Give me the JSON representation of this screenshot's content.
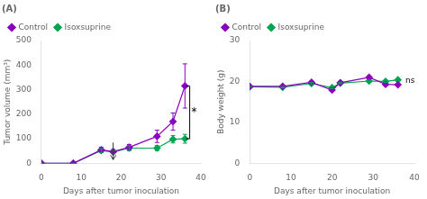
{
  "chart_data": [
    {
      "type": "line",
      "title": "(A)",
      "xlabel": "Days after tumor inoculation",
      "ylabel": "Tumor volume (mm³)",
      "x": [
        0,
        8,
        15,
        18,
        22,
        29,
        33,
        36
      ],
      "xlim": [
        0,
        40
      ],
      "xticks": [
        0,
        10,
        20,
        30,
        40
      ],
      "ylim": [
        0,
        500
      ],
      "yticks": [
        0,
        100,
        200,
        300,
        400,
        500
      ],
      "grid": false,
      "legend": "upper left",
      "marker": "diamond",
      "series": [
        {
          "name": "Control",
          "color": "#8B00BE",
          "values": [
            0,
            0,
            55,
            48,
            65,
            110,
            170,
            315
          ],
          "errors": [
            0,
            0,
            10,
            8,
            12,
            25,
            35,
            90
          ]
        },
        {
          "name": "Isoxsuprine",
          "color": "#00A550",
          "values": [
            0,
            0,
            52,
            46,
            62,
            62,
            98,
            100
          ],
          "errors": [
            0,
            0,
            8,
            7,
            10,
            10,
            15,
            18
          ]
        }
      ],
      "annotations": [
        {
          "type": "arrow",
          "x": 18,
          "y_start": 85,
          "y_end": 15,
          "color": "#333333"
        },
        {
          "type": "bracket",
          "x": 37.2,
          "y_start": 315,
          "y_end": 100,
          "text": "*",
          "color": "#000000"
        }
      ]
    },
    {
      "type": "line",
      "title": "(B)",
      "xlabel": "Days after tumor inoculation",
      "ylabel": "Body weight (g)",
      "x": [
        0,
        8,
        15,
        20,
        22,
        29,
        33,
        36
      ],
      "xlim": [
        0,
        40
      ],
      "xticks": [
        0,
        10,
        20,
        30,
        40
      ],
      "ylim": [
        0,
        30
      ],
      "yticks": [
        0,
        10,
        20,
        30
      ],
      "grid": false,
      "legend": "upper left",
      "marker": "diamond",
      "series": [
        {
          "name": "Control",
          "color": "#8B00BE",
          "values": [
            18.8,
            18.8,
            19.8,
            17.9,
            19.7,
            21.0,
            19.3,
            19.2
          ],
          "errors": [
            0.15,
            0.15,
            0.25,
            0.25,
            0.25,
            0.35,
            0.25,
            0.25
          ]
        },
        {
          "name": "Isoxsuprine",
          "color": "#00A550",
          "values": [
            18.7,
            18.6,
            19.5,
            18.5,
            19.6,
            20.1,
            20.0,
            20.4
          ],
          "errors": [
            0.15,
            0.15,
            0.25,
            0.25,
            0.15,
            0.25,
            0.25,
            0.25
          ]
        }
      ],
      "annotations": [
        {
          "type": "text",
          "x": 37.8,
          "y": 20.2,
          "text": "ns",
          "color": "#000000"
        }
      ]
    }
  ]
}
